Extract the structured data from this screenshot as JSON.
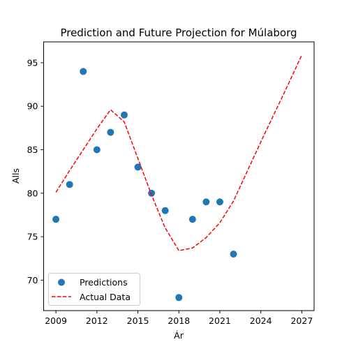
{
  "chart_data": {
    "type": "scatter",
    "title": "Prediction and Future Projection for Múlaborg",
    "xlabel": "Ár",
    "ylabel": "Alls",
    "xlim": [
      2008.1,
      2027.9
    ],
    "ylim": [
      66.5,
      97.4
    ],
    "xticks": [
      2009,
      2012,
      2015,
      2018,
      2021,
      2024,
      2027
    ],
    "yticks": [
      70,
      75,
      80,
      85,
      90,
      95
    ],
    "grid": false,
    "legend_position": "lower-left",
    "series": [
      {
        "name": "Predictions",
        "kind": "scatter",
        "color": "#1f77b4",
        "x": [
          2009,
          2010,
          2011,
          2012,
          2013,
          2014,
          2015,
          2016,
          2017,
          2018,
          2019,
          2020,
          2021,
          2022
        ],
        "y": [
          77,
          81,
          94,
          85,
          87,
          89,
          83,
          80,
          78,
          68,
          77,
          79,
          79,
          73
        ]
      },
      {
        "name": "Actual Data",
        "kind": "line",
        "style": "dashed",
        "color": "#ff0000",
        "x": [
          2009,
          2010,
          2011,
          2012,
          2013,
          2014,
          2015,
          2016,
          2017,
          2018,
          2019,
          2020,
          2021,
          2022,
          2023,
          2024,
          2025,
          2026,
          2027
        ],
        "y": [
          80.1,
          82.6,
          85.0,
          87.4,
          89.6,
          88.2,
          84.0,
          79.8,
          76.0,
          73.4,
          73.7,
          74.9,
          76.6,
          79.1,
          82.5,
          85.9,
          89.2,
          92.5,
          95.9
        ]
      }
    ]
  }
}
